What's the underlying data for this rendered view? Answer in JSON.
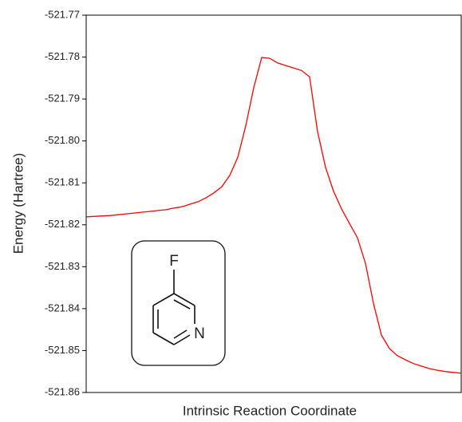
{
  "chart_data": {
    "type": "line",
    "y_label": "Energy (Hartree)",
    "x_label": "Intrinsic Reaction Coordinate",
    "inset_labels": [
      "F",
      "N"
    ],
    "ylim": [
      -521.86,
      -521.77
    ],
    "yticks": [
      -521.86,
      -521.85,
      -521.84,
      -521.83,
      -521.82,
      -521.81,
      {
        "value": -521.8,
        "label": "-521.80"
      },
      -521.79,
      -521.78,
      -521.77
    ],
    "series": [
      {
        "color": "#ff0000",
        "values": [
          -521.8181,
          -521.818,
          -521.8179,
          -521.8178,
          -521.8176,
          -521.8174,
          -521.8172,
          -521.817,
          -521.8168,
          -521.8166,
          -521.8164,
          -521.816,
          -521.8157,
          -521.8151,
          -521.8145,
          -521.8136,
          -521.8124,
          -521.8109,
          -521.8082,
          -521.8039,
          -521.7964,
          -521.7873,
          -521.7801,
          -521.7803,
          -521.7814,
          -521.782,
          -521.7826,
          -521.7832,
          -521.7847,
          -521.7978,
          -521.8063,
          -521.812,
          -521.8162,
          -521.8197,
          -521.8231,
          -521.8292,
          -521.8387,
          -521.8463,
          -521.8495,
          -521.8512,
          -521.8522,
          -521.8531,
          -521.8537,
          -521.8543,
          -521.8547,
          -521.855,
          -521.8552,
          -521.8554
        ]
      }
    ]
  }
}
